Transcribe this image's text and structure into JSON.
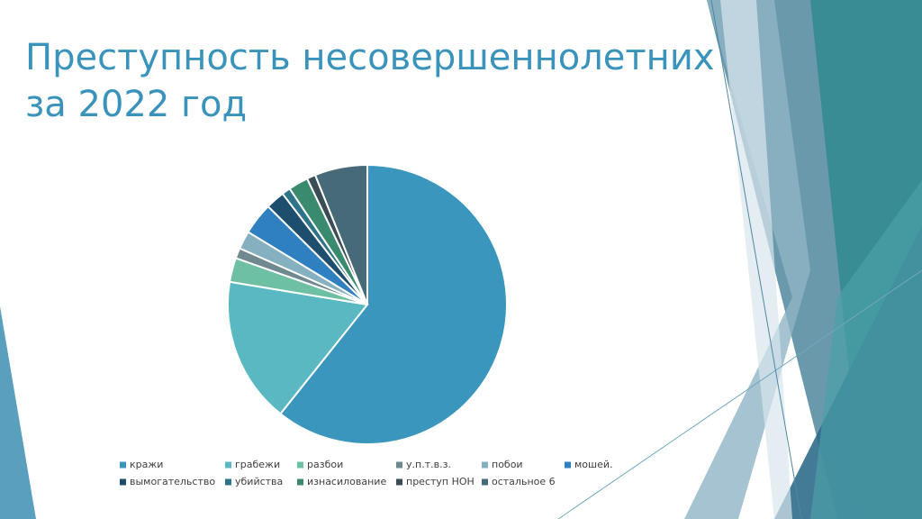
{
  "chart_data": {
    "type": "pie",
    "title": "Преступность несовершеннолетних за 2022 год",
    "categories": [
      "кражи",
      "грабежи",
      "разбои",
      "у.п.т.в.з.",
      "побои",
      "мошей.",
      "вымогательство",
      "убийства",
      "изнасилование",
      "преступ НОН",
      "остальное 6"
    ],
    "values": [
      60.7,
      16.9,
      2.8,
      1.2,
      2.1,
      3.7,
      2.2,
      1.0,
      2.3,
      1.0,
      6.1
    ],
    "colors": [
      "#3a96bd",
      "#5ab8c2",
      "#6ec0a5",
      "#708890",
      "#84b0c0",
      "#2e80c0",
      "#1e4e6e",
      "#2d7488",
      "#3a8a70",
      "#3a4c55",
      "#476a78"
    ],
    "legend": "bottom"
  }
}
